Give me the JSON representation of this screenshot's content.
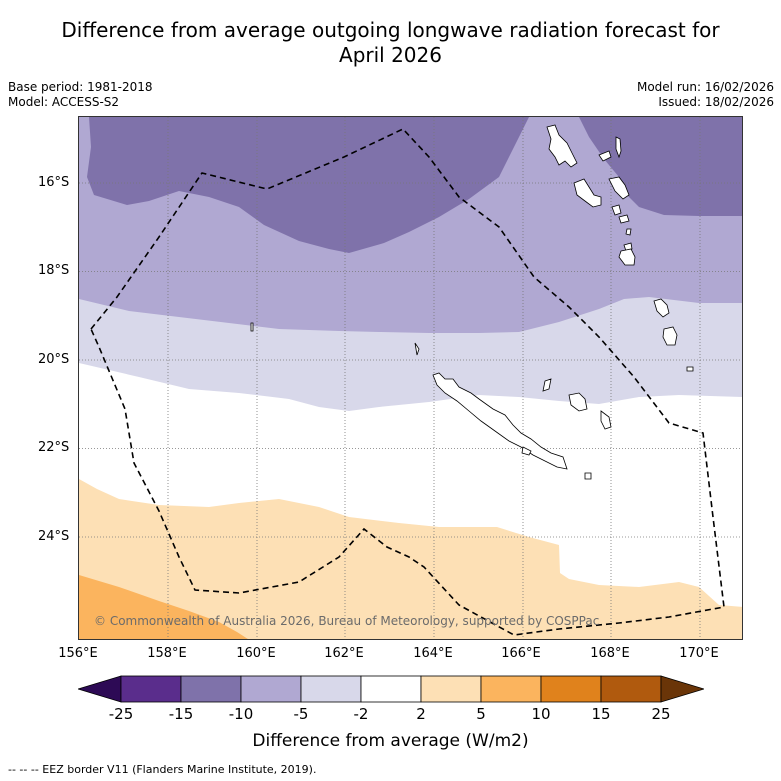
{
  "title": {
    "line1": "Difference from average outgoing longwave radiation forecast for",
    "line2": "April 2026"
  },
  "meta": {
    "base_period": "Base period: 1981-2018",
    "model": "Model: ACCESS-S2",
    "model_run": "Model run: 16/02/2026",
    "issued": "Issued: 18/02/2026"
  },
  "map": {
    "copyright": "© Commonwealth of Australia 2026, Bureau of Meteorology, supported by COSPPac",
    "lat_labels": [
      "16°S",
      "18°S",
      "20°S",
      "22°S",
      "24°S"
    ],
    "lon_labels": [
      "156°E",
      "158°E",
      "160°E",
      "162°E",
      "164°E",
      "166°E",
      "168°E",
      "170°E"
    ]
  },
  "colorbar": {
    "title": "Difference from average (W/m2)",
    "tick_labels": [
      "-25",
      "-15",
      "-10",
      "-5",
      "-2",
      "2",
      "5",
      "10",
      "15",
      "25"
    ],
    "colors": [
      "#2d0a55",
      "#5a2d8c",
      "#7f72aa",
      "#b0a8d2",
      "#d8d8ea",
      "#ffffff",
      "#fde0b5",
      "#fbb45e",
      "#e0821c",
      "#b05a0e",
      "#6a3508"
    ]
  },
  "footer": {
    "legend": "--  --  -- EEZ border V11 (Flanders Marine Institute, 2019)."
  }
}
